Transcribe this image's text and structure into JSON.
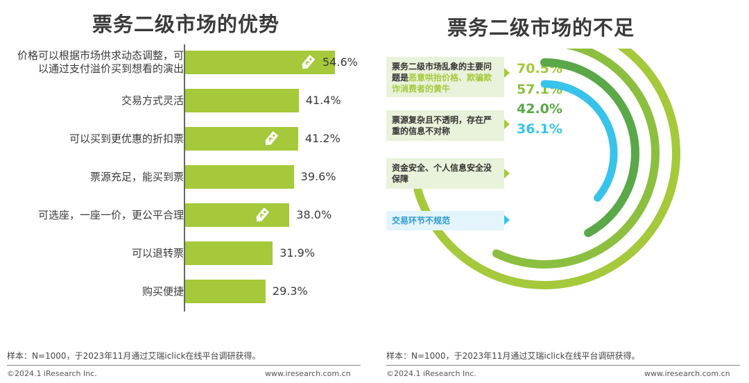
{
  "left_title": "票务二级市场的优势",
  "right_title": "票务二级市场的不足",
  "chart_data": [
    {
      "type": "bar",
      "orientation": "horizontal",
      "title": "票务二级市场的优势",
      "categories": [
        "价格可以根据市场供求动态调整，可以通过支付溢价买到想看的演出",
        "交易方式灵活",
        "可以买到更优惠的折扣票",
        "票源充足，能买到票",
        "可选座，一座一价，更公平合理",
        "可以退转票",
        "购买便捷"
      ],
      "category_lines": [
        [
          "价格可以根据市场供求动态调整，可",
          "以通过支付溢价买到想看的演出"
        ],
        [
          "交易方式灵活"
        ],
        [
          "可以买到更优惠的折扣票"
        ],
        [
          "票源充足，能买到票"
        ],
        [
          "可选座，一座一价，更公平合理"
        ],
        [
          "可以退转票"
        ],
        [
          "购买便捷"
        ]
      ],
      "values": [
        54.6,
        41.4,
        41.2,
        39.6,
        38.0,
        31.9,
        29.3
      ],
      "value_labels": [
        "54.6%",
        "41.4%",
        "41.2%",
        "39.6%",
        "38.0%",
        "31.9%",
        "29.3%"
      ],
      "tag_icons": [
        true,
        false,
        true,
        false,
        true,
        false,
        false
      ],
      "xlim": [
        0,
        60
      ],
      "bar_color": "#a5c93a"
    },
    {
      "type": "radial-bar",
      "title": "票务二级市场的不足",
      "categories": [
        "票务二级市场乱象的主要问题是恶意哄抬价格、欺骗欺诈消费者的黄牛",
        "票源复杂且不透明，存在严重的信息不对称",
        "资金安全、个人信息安全没保障",
        "交易环节不规范"
      ],
      "values": [
        70.5,
        57.1,
        42.0,
        36.1
      ],
      "value_labels": [
        "70.5%",
        "57.1%",
        "42.0%",
        "36.1%"
      ],
      "colors": [
        "#a5c93a",
        "#8cbf3f",
        "#5aa847",
        "#38c3ea"
      ],
      "full_scale": 100
    }
  ],
  "cards": [
    {
      "pre": "票务二级市场乱象的主要问题是",
      "hl": "恶意哄抬价格、欺骗欺诈消费者的黄牛",
      "post": ""
    },
    {
      "pre": "票源复杂且不透明，存在严重的信息不对称",
      "hl": "",
      "post": ""
    },
    {
      "pre": "资金安全、个人信息安全没保障",
      "hl": "",
      "post": ""
    },
    {
      "pre": "交易环节不规范",
      "hl": "",
      "post": ""
    }
  ],
  "footer": {
    "sample_note": "样本：N=1000，于2023年11月通过艾瑞iclick在线平台调研获得。",
    "copyright": "©2024.1 iResearch Inc.",
    "website": "www.iresearch.com.cn"
  }
}
